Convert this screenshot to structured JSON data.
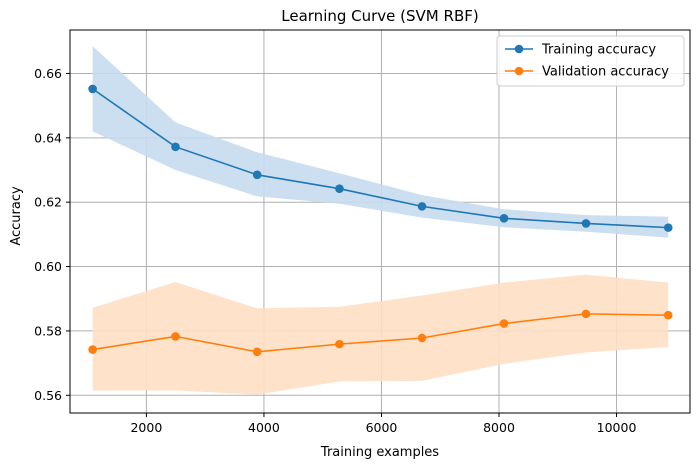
{
  "chart_data": {
    "type": "line",
    "title": "Learning Curve (SVM RBF)",
    "xlabel": "Training examples",
    "ylabel": "Accuracy",
    "xlim": [
      700,
      11250
    ],
    "ylim": [
      0.5545,
      0.6735
    ],
    "xticks": [
      2000,
      4000,
      6000,
      8000,
      10000
    ],
    "xtick_labels": [
      "2000",
      "4000",
      "6000",
      "8000",
      "10000"
    ],
    "yticks": [
      0.56,
      0.58,
      0.6,
      0.62,
      0.64,
      0.66
    ],
    "ytick_labels": [
      "0.56",
      "0.58",
      "0.60",
      "0.62",
      "0.64",
      "0.66"
    ],
    "grid": true,
    "legend_position": "top-right",
    "x": [
      1085,
      2495,
      3885,
      5285,
      6690,
      8085,
      9480,
      10880
    ],
    "series": [
      {
        "name": "Training accuracy",
        "color": "#1f77b4",
        "band_color": "#c6dbef",
        "values": [
          0.6552,
          0.6372,
          0.6285,
          0.6242,
          0.6187,
          0.615,
          0.6134,
          0.6121
        ],
        "band_upper": [
          0.6685,
          0.6448,
          0.6355,
          0.629,
          0.6222,
          0.6178,
          0.616,
          0.6155
        ],
        "band_lower": [
          0.642,
          0.63,
          0.6218,
          0.6195,
          0.6152,
          0.6122,
          0.6108,
          0.609
        ]
      },
      {
        "name": "Validation accuracy",
        "color": "#ff7f0e",
        "band_color": "#ffdfc4",
        "values": [
          0.5742,
          0.5783,
          0.5735,
          0.5759,
          0.5778,
          0.5823,
          0.5853,
          0.5849
        ],
        "band_upper": [
          0.5872,
          0.5952,
          0.587,
          0.5875,
          0.591,
          0.595,
          0.5975,
          0.595
        ],
        "band_lower": [
          0.5615,
          0.5615,
          0.5602,
          0.5643,
          0.5645,
          0.5698,
          0.5733,
          0.575
        ]
      }
    ]
  }
}
